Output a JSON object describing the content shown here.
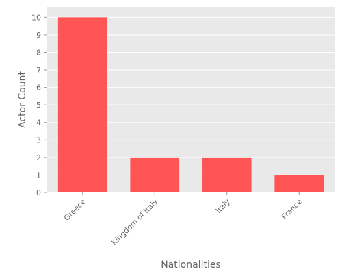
{
  "chart_data": {
    "type": "bar",
    "categories": [
      "Greece",
      "Kingdom of Italy",
      "Italy",
      "France"
    ],
    "values": [
      10,
      2,
      2,
      1
    ],
    "title": "",
    "xlabel": "Nationalities",
    "ylabel": "Actor Count",
    "ylim": [
      0,
      10.6
    ],
    "yticks": [
      0,
      1,
      2,
      3,
      4,
      5,
      6,
      7,
      8,
      9,
      10
    ],
    "grid": true,
    "legend": "none",
    "colors": {
      "bar": "#ff5555",
      "plot_background": "#e9e9e9",
      "grid": "#ffffff",
      "tick_text": "#666666",
      "axis_label": "#666666"
    }
  }
}
